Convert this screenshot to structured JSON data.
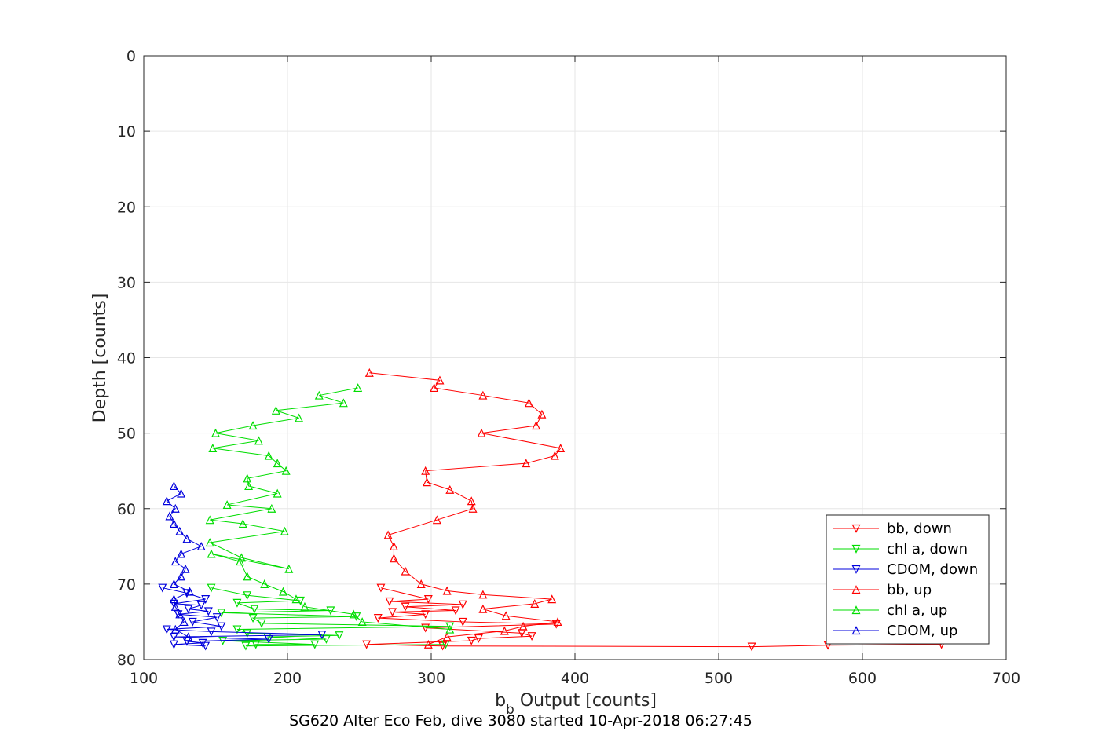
{
  "chart_data": {
    "type": "line",
    "xlabel_main": "b",
    "xlabel_sub": "b",
    "xlabel_rest": " Output [counts]",
    "ylabel": "Depth [counts]",
    "caption": "SG620 Alter Eco Feb, dive 3080 started 10-Apr-2018 06:27:45",
    "xlim": [
      100,
      700
    ],
    "ylim": [
      0,
      80
    ],
    "y_reversed": true,
    "grid": true,
    "legend_position": "bottom-right",
    "x_ticks": [
      "100",
      "200",
      "300",
      "400",
      "500",
      "600",
      "700"
    ],
    "y_ticks": [
      "0",
      "10",
      "20",
      "30",
      "40",
      "50",
      "60",
      "70",
      "80"
    ],
    "series": [
      {
        "name": "bb, down",
        "color": "#ff0000",
        "marker": "triangle-down",
        "x": [
          265,
          298,
          271,
          322,
          282,
          317,
          273,
          296,
          263,
          322,
          387,
          296,
          363,
          370,
          333,
          328,
          255,
          308,
          523,
          576,
          655
        ],
        "y": [
          70.5,
          72.0,
          72.3,
          72.7,
          73.0,
          73.5,
          73.7,
          74.0,
          74.5,
          75.0,
          75.3,
          75.8,
          76.5,
          76.9,
          77.2,
          77.5,
          78.0,
          78.2,
          78.3,
          78.1,
          78.0
        ]
      },
      {
        "name": "chl a, down",
        "color": "#00dd00",
        "marker": "triangle-down",
        "x": [
          147,
          172,
          209,
          165,
          177,
          230,
          154,
          248,
          176,
          182,
          313,
          165,
          172,
          236,
          186,
          227,
          155,
          219,
          178,
          171,
          310
        ],
        "y": [
          70.5,
          71.5,
          72.2,
          72.5,
          73.3,
          73.5,
          73.8,
          74.3,
          74.5,
          75.2,
          75.6,
          76.0,
          76.5,
          76.8,
          77.0,
          77.3,
          77.5,
          78.0,
          78.0,
          78.2,
          78.0
        ]
      },
      {
        "name": "CDOM, down",
        "color": "#0000dd",
        "marker": "triangle-down",
        "x": [
          113,
          130,
          143,
          121,
          140,
          131,
          145,
          124,
          151,
          134,
          154,
          116,
          147,
          224,
          121,
          187,
          130,
          141,
          121,
          143
        ],
        "y": [
          70.5,
          71.2,
          72.0,
          72.6,
          72.8,
          73.3,
          73.6,
          74.0,
          74.4,
          75.0,
          75.6,
          76.0,
          76.3,
          76.7,
          77.0,
          77.3,
          77.6,
          77.8,
          78.0,
          78.2
        ]
      },
      {
        "name": "bb, up",
        "color": "#ff0000",
        "marker": "triangle-up",
        "x": [
          298,
          311,
          351,
          364,
          388,
          352,
          336,
          372,
          384,
          336,
          311,
          293,
          282,
          274,
          274,
          270,
          304,
          329,
          328,
          313,
          297,
          296,
          366,
          386,
          390,
          335,
          373,
          377,
          368,
          336,
          302,
          306,
          257
        ],
        "y": [
          78.0,
          77.0,
          76.2,
          75.6,
          75.0,
          74.2,
          73.3,
          72.6,
          72.0,
          71.4,
          70.9,
          70.0,
          68.3,
          66.6,
          65.0,
          63.5,
          61.5,
          60.0,
          59.0,
          57.5,
          56.5,
          55.0,
          54.0,
          53.0,
          52.0,
          50.0,
          49.0,
          47.5,
          46.0,
          45.0,
          44.0,
          43.0,
          42.0
        ]
      },
      {
        "name": "chl a, up",
        "color": "#00dd00",
        "marker": "triangle-up",
        "x": [
          313,
          252,
          246,
          212,
          206,
          197,
          184,
          172,
          167,
          147,
          201,
          168,
          146,
          198,
          169,
          146,
          189,
          158,
          193,
          173,
          172,
          199,
          193,
          187,
          148,
          180,
          150,
          176,
          208,
          192,
          239,
          222,
          249
        ],
        "y": [
          76.0,
          75.0,
          74.0,
          73.0,
          72.0,
          71.0,
          70.0,
          69.0,
          67.0,
          66.0,
          68.0,
          66.5,
          64.5,
          63.0,
          62.0,
          61.5,
          60.0,
          59.5,
          58.0,
          57.0,
          56.0,
          55.0,
          54.0,
          53.0,
          52.0,
          51.0,
          50.0,
          49.0,
          48.0,
          47.0,
          46.0,
          45.0,
          44.0
        ],
        "display_only": true
      },
      {
        "name": "CDOM, up",
        "color": "#0000dd",
        "marker": "triangle-up",
        "x": [
          131,
          122,
          128,
          125,
          122,
          121,
          132,
          121,
          126,
          129,
          122,
          126,
          140,
          130,
          125,
          121,
          118,
          122,
          116,
          126,
          121
        ],
        "y": [
          77.0,
          76.0,
          75.0,
          74.0,
          73.0,
          72.0,
          71.0,
          70.0,
          69.0,
          68.0,
          67.0,
          66.0,
          65.0,
          64.0,
          63.0,
          62.0,
          61.0,
          60.0,
          59.0,
          58.0,
          57.0
        ]
      }
    ]
  }
}
